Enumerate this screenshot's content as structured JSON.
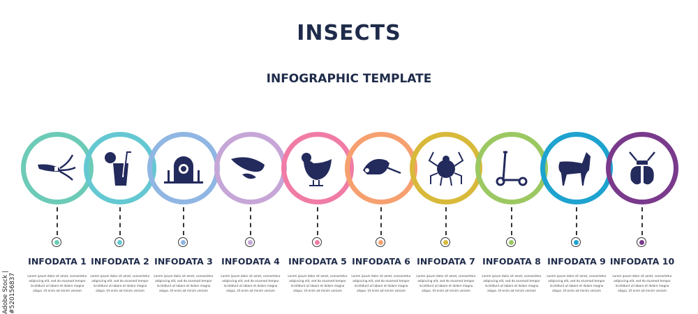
{
  "header": {
    "title": "INSECTS",
    "subtitle": "INFOGRAPHIC TEMPLATE"
  },
  "watermark": "Adobe Stock | #520156837",
  "icon_color": "#232a5c",
  "steps": [
    {
      "label": "INFODATA 1",
      "icon": "squid-icon",
      "color": "#6ccbb7",
      "desc": "Lorem ipsum dolor sit amet, consectetur adipiscing elit, sed do eiusmod tempor incididunt ut labore et dolore magna aliqua. Ut enim ad minim veniam"
    },
    {
      "label": "INFODATA 2",
      "icon": "cocktail-icon",
      "color": "#64c8d2",
      "desc": "Lorem ipsum dolor sit amet, consectetur adipiscing elit, sed do eiusmod tempor incididunt ut labore et dolore magna aliqua. Ut enim ad minim veniam"
    },
    {
      "label": "INFODATA 3",
      "icon": "tunnel-icon",
      "color": "#90b6e3",
      "desc": "Lorem ipsum dolor sit amet, consectetur adipiscing elit, sed do eiusmod tempor incididunt ut labore et dolore magna aliqua. Ut enim ad minim veniam"
    },
    {
      "label": "INFODATA 4",
      "icon": "shrimp-icon",
      "color": "#c6a6d7",
      "desc": "Lorem ipsum dolor sit amet, consectetur adipiscing elit, sed do eiusmod tempor incididunt ut labore et dolore magna aliqua. Ut enim ad minim veniam"
    },
    {
      "label": "INFODATA 5",
      "icon": "hen-icon",
      "color": "#f07ca6",
      "desc": "Lorem ipsum dolor sit amet, consectetur adipiscing elit, sed do eiusmod tempor incididunt ut labore et dolore magna aliqua. Ut enim ad minim veniam"
    },
    {
      "label": "INFODATA 6",
      "icon": "porcupine-icon",
      "color": "#f6a070",
      "desc": "Lorem ipsum dolor sit amet, consectetur adipiscing elit, sed do eiusmod tempor incididunt ut labore et dolore magna aliqua. Ut enim ad minim veniam"
    },
    {
      "label": "INFODATA 7",
      "icon": "tick-icon",
      "color": "#d8b93a",
      "desc": "Lorem ipsum dolor sit amet, consectetur adipiscing elit, sed do eiusmod tempor incididunt ut labore et dolore magna aliqua. Ut enim ad minim veniam"
    },
    {
      "label": "INFODATA 8",
      "icon": "scooter-icon",
      "color": "#9cc862",
      "desc": "Lorem ipsum dolor sit amet, consectetur adipiscing elit, sed do eiusmod tempor incididunt ut labore et dolore magna aliqua. Ut enim ad minim veniam"
    },
    {
      "label": "INFODATA 9",
      "icon": "llama-icon",
      "color": "#1ea3cf",
      "desc": "Lorem ipsum dolor sit amet, consectetur adipiscing elit, sed do eiusmod tempor incididunt ut labore et dolore magna aliqua. Ut enim ad minim veniam"
    },
    {
      "label": "INFODATA 10",
      "icon": "beetle-icon",
      "color": "#7a3a8c",
      "desc": "Lorem ipsum dolor sit amet, consectetur adipiscing elit, sed do eiusmod tempor incididunt ut labore et dolore magna aliqua. Ut enim ad minim veniam"
    }
  ]
}
